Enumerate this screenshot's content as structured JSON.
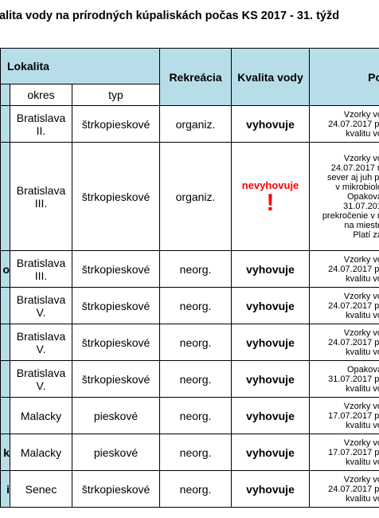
{
  "title": "alita vody na prírodných kúpaliskách počas KS 2017 -  31. týžd",
  "header": {
    "lokalita": "Lokalita",
    "okres": "okres",
    "typ": "typ",
    "rekreacia": "Rekreácia",
    "kvalita": "Kvalita vody",
    "po": "Po"
  },
  "colors": {
    "header_bg": "#b7dde8",
    "bad": "#ff0000"
  },
  "rows": [
    {
      "c0": "",
      "okres": "Bratislava II.",
      "typ": "štrkopieskové",
      "rekreacia": "organiz.",
      "kvalita": "vyhovuje",
      "status": "ok",
      "notes": [
        "Vzorky vo",
        "24.07.2017 pr",
        "kvalitu vo"
      ]
    },
    {
      "c0": "",
      "okres": "Bratislava III.",
      "typ": "štrkopieskové",
      "rekreacia": "organiz.",
      "kvalita": "nevyhovuje",
      "status": "bad",
      "mark": "!",
      "notes": [
        "Vzorky vo",
        "24.07.2017 n",
        "sever aj juh pr",
        "v mikrobiolo",
        "Opakova",
        "31.07.201",
        "prekročenie v n",
        "na mieste",
        "Platí za"
      ]
    },
    {
      "c0": "o",
      "okres": "Bratislava III.",
      "typ": "štrkopieskové",
      "rekreacia": "neorg.",
      "kvalita": "vyhovuje",
      "status": "ok",
      "notes": [
        "Vzorky vo",
        "24.07.2017 pr",
        "kvalitu vo"
      ]
    },
    {
      "c0": "",
      "okres": "Bratislava V.",
      "typ": "štrkopieskové",
      "rekreacia": "neorg.",
      "kvalita": "vyhovuje",
      "status": "ok",
      "notes": [
        "Vzorky vo",
        "24.07.2017 pr",
        "kvalitu vo"
      ]
    },
    {
      "c0": "",
      "okres": "Bratislava V.",
      "typ": "štrkopieskové",
      "rekreacia": "neorg.",
      "kvalita": "vyhovuje",
      "status": "ok",
      "notes": [
        "Vzorky vo",
        "24.07.2017 pr",
        "kvalitu vo"
      ]
    },
    {
      "c0": "",
      "okres": "Bratislava V.",
      "typ": "štrkopieskové",
      "rekreacia": "neorg.",
      "kvalita": "vyhovuje",
      "status": "ok",
      "notes": [
        "Opakova",
        "31.07.2017 pr",
        "kvalitu vo"
      ]
    },
    {
      "c0": "",
      "okres": "Malacky",
      "typ": "pieskové",
      "rekreacia": "neorg.",
      "kvalita": "vyhovuje",
      "status": "ok",
      "notes": [
        "Vzorky vo",
        "17.07.2017 pr",
        "kvalitu vo"
      ]
    },
    {
      "c0": "k",
      "okres": "Malacky",
      "typ": "pieskové",
      "rekreacia": "neorg.",
      "kvalita": "vyhovuje",
      "status": "ok",
      "notes": [
        "Vzorky vo",
        "17.07.2017 pr",
        "kvalitu vo"
      ]
    },
    {
      "c0": "i",
      "okres": "Senec",
      "typ": "štrkopieskové",
      "rekreacia": "neorg.",
      "kvalita": "vyhovuje",
      "status": "ok",
      "notes": [
        "Vzorky vo",
        "24.07.2017 pr",
        "kvalitu vo"
      ]
    }
  ]
}
